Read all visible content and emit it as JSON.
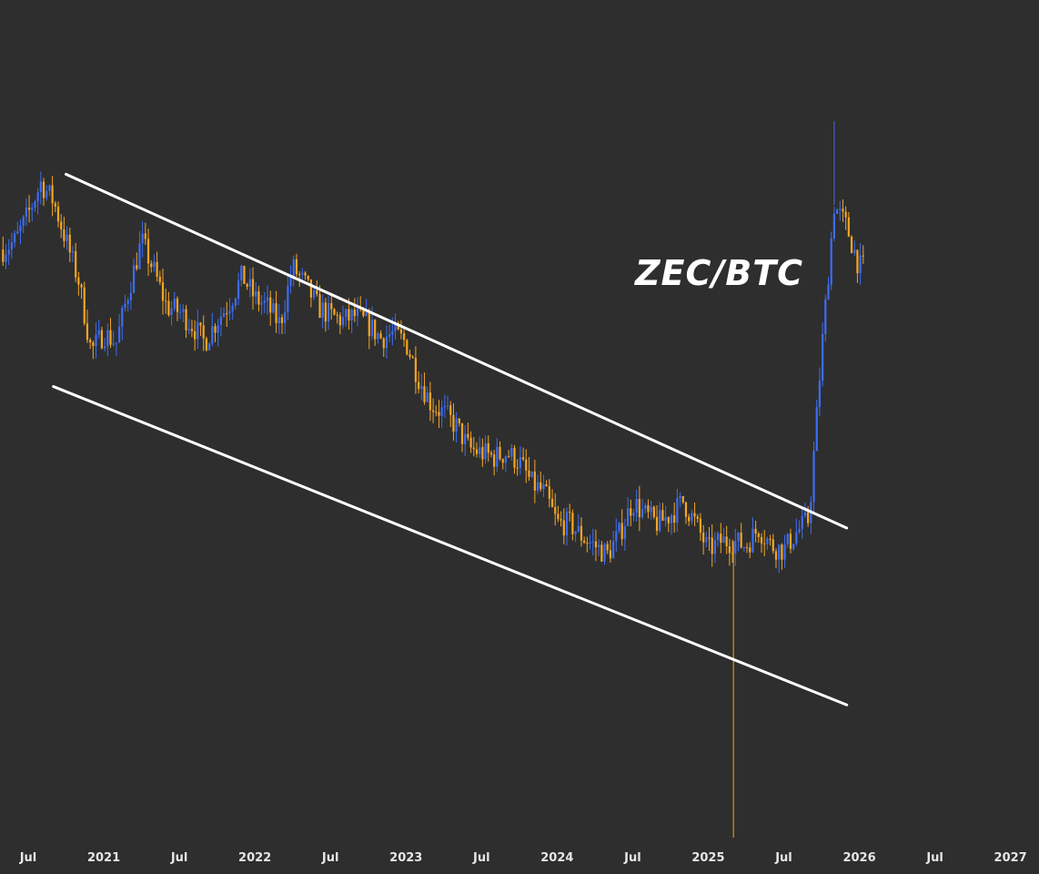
{
  "colors": {
    "background": "#2e2e2e",
    "up_candle": "#3d6df2",
    "down_candle": "#f5a623",
    "trendline": "#ffffff",
    "axis_text": "#e6e6e6"
  },
  "chart_data": {
    "type": "candlestick",
    "title": "ZEC/BTC",
    "y_axis_shown": false,
    "grid": false,
    "x_tick_labels": [
      "Jul",
      "2021",
      "Jul",
      "2022",
      "Jul",
      "2023",
      "Jul",
      "2024",
      "Jul",
      "2025",
      "Jul",
      "2026",
      "Jul",
      "2027"
    ],
    "x_ticks": [
      "2020-07",
      "2021-01",
      "2021-07",
      "2022-01",
      "2022-07",
      "2023-01",
      "2023-07",
      "2024-01",
      "2024-07",
      "2025-01",
      "2025-07",
      "2026-01",
      "2026-07",
      "2027-01"
    ],
    "series_anchors": [
      [
        "2020-05",
        0.93
      ],
      [
        "2020-06",
        0.95
      ],
      [
        "2020-07",
        1.01
      ],
      [
        "2020-08",
        1.08
      ],
      [
        "2020-09",
        1.04
      ],
      [
        "2020-10",
        0.95
      ],
      [
        "2020-11",
        0.86
      ],
      [
        "2020-12",
        0.7
      ],
      [
        "2021-01",
        0.74
      ],
      [
        "2021-02",
        0.72
      ],
      [
        "2021-03",
        0.84
      ],
      [
        "2021-04",
        0.95
      ],
      [
        "2021-05",
        0.88
      ],
      [
        "2021-06",
        0.8
      ],
      [
        "2021-07",
        0.79
      ],
      [
        "2021-08",
        0.76
      ],
      [
        "2021-09",
        0.72
      ],
      [
        "2021-10",
        0.77
      ],
      [
        "2021-11",
        0.81
      ],
      [
        "2021-12",
        0.87
      ],
      [
        "2022-01",
        0.82
      ],
      [
        "2022-02",
        0.8
      ],
      [
        "2022-03",
        0.76
      ],
      [
        "2022-04",
        0.89
      ],
      [
        "2022-05",
        0.85
      ],
      [
        "2022-06",
        0.8
      ],
      [
        "2022-07",
        0.78
      ],
      [
        "2022-08",
        0.77
      ],
      [
        "2022-09",
        0.78
      ],
      [
        "2022-10",
        0.76
      ],
      [
        "2022-11",
        0.73
      ],
      [
        "2022-12",
        0.74
      ],
      [
        "2023-01",
        0.72
      ],
      [
        "2023-02",
        0.64
      ],
      [
        "2023-03",
        0.58
      ],
      [
        "2023-04",
        0.56
      ],
      [
        "2023-05",
        0.53
      ],
      [
        "2023-06",
        0.48
      ],
      [
        "2023-07",
        0.47
      ],
      [
        "2023-08",
        0.46
      ],
      [
        "2023-09",
        0.47
      ],
      [
        "2023-10",
        0.45
      ],
      [
        "2023-11",
        0.4
      ],
      [
        "2023-12",
        0.38
      ],
      [
        "2024-01",
        0.31
      ],
      [
        "2024-02",
        0.31
      ],
      [
        "2024-03",
        0.28
      ],
      [
        "2024-04",
        0.26
      ],
      [
        "2024-05",
        0.24
      ],
      [
        "2024-06",
        0.29
      ],
      [
        "2024-07",
        0.36
      ],
      [
        "2024-08",
        0.33
      ],
      [
        "2024-09",
        0.31
      ],
      [
        "2024-10",
        0.33
      ],
      [
        "2024-11",
        0.36
      ],
      [
        "2024-12",
        0.31
      ],
      [
        "2025-01",
        0.25
      ],
      [
        "2025-02",
        0.27
      ],
      [
        "2025-03",
        0.27
      ],
      [
        "2025-04",
        0.26
      ],
      [
        "2025-05",
        0.3
      ],
      [
        "2025-06",
        0.26
      ],
      [
        "2025-07",
        0.25
      ],
      [
        "2025-08",
        0.29
      ],
      [
        "2025-09",
        0.32
      ],
      [
        "2025-10",
        0.7
      ],
      [
        "2025-11",
        1.03
      ],
      [
        "2025-12",
        0.98
      ],
      [
        "2026-01",
        0.89
      ]
    ],
    "notable_wicks": [
      {
        "date": "2025-03",
        "low": -0.4,
        "note": "long lower wick"
      },
      {
        "date": "2025-11",
        "high": 1.22
      }
    ],
    "trendlines": [
      {
        "name": "upper resistance",
        "from": [
          "2020-10",
          1.1
        ],
        "to": [
          "2025-12",
          0.3
        ]
      },
      {
        "name": "lower support",
        "from": [
          "2020-09",
          0.62
        ],
        "to": [
          "2025-12",
          -0.1
        ]
      }
    ],
    "y_range": [
      -0.45,
      1.25
    ]
  }
}
